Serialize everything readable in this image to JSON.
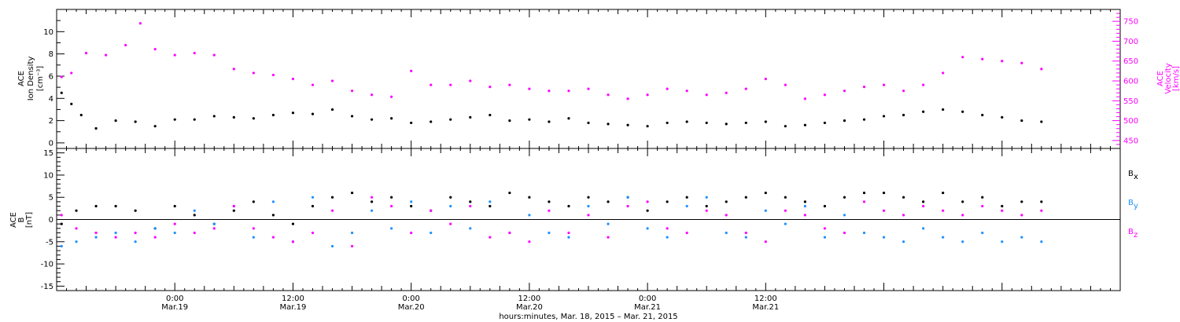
{
  "chart_data": [
    {
      "type": "scatter",
      "panel": "ACE Ion Density / Velocity",
      "x_unit": "hours since 2015-03-18 00:00 UT",
      "xlim": [
        12,
        120
      ],
      "left_axis": {
        "ylabel": [
          "ACE",
          "Ion Density",
          "[cm⁻³]"
        ],
        "ylim": [
          -0.5,
          12
        ],
        "ticks": [
          0,
          2,
          4,
          6,
          8,
          10
        ],
        "tick_labels": [
          "0",
          "2",
          "4",
          "6",
          "8",
          "10"
        ]
      },
      "right_axis": {
        "ylabel": [
          "ACE",
          "Velocity",
          "[km/s]"
        ],
        "ylim": [
          430,
          780
        ],
        "ticks": [
          450,
          500,
          550,
          600,
          650,
          700,
          750
        ],
        "tick_labels": [
          "450",
          "500",
          "550",
          "600",
          "650",
          "700",
          "750"
        ],
        "color": "#ff00ff"
      },
      "series": [
        {
          "name": "Ion Density",
          "axis": "left",
          "color": "#000000",
          "x": [
            12.5,
            13.5,
            14.5,
            16,
            18,
            20,
            22,
            24,
            26,
            28,
            30,
            32,
            34,
            36,
            38,
            40,
            42,
            44,
            46,
            48,
            50,
            52,
            54,
            56,
            58,
            60,
            62,
            64,
            66,
            68,
            70,
            72,
            74,
            76,
            78,
            80,
            82,
            84,
            86,
            88,
            90,
            92,
            94,
            96,
            98,
            100,
            102,
            104,
            106,
            108,
            110,
            112
          ],
          "y": [
            4.5,
            3.5,
            2.5,
            1.3,
            2.0,
            1.9,
            1.5,
            2.1,
            2.1,
            2.4,
            2.3,
            2.2,
            2.5,
            2.7,
            2.6,
            3.0,
            2.4,
            2.1,
            2.2,
            1.8,
            1.9,
            2.1,
            2.3,
            2.5,
            2.0,
            2.1,
            1.9,
            2.2,
            1.8,
            1.7,
            1.6,
            1.5,
            1.8,
            1.9,
            1.8,
            1.7,
            1.8,
            1.9,
            1.5,
            1.6,
            1.8,
            2.0,
            2.1,
            2.4,
            2.5,
            2.8,
            3.0,
            2.8,
            2.5,
            2.3,
            2.0,
            1.9
          ]
        },
        {
          "name": "Velocity",
          "axis": "right",
          "color": "#ff00ff",
          "x": [
            12.5,
            13.5,
            15,
            17,
            19,
            20.5,
            22,
            24,
            26,
            28,
            30,
            32,
            34,
            36,
            38,
            40,
            42,
            44,
            46,
            48,
            50,
            52,
            54,
            56,
            58,
            60,
            62,
            64,
            66,
            68,
            70,
            72,
            74,
            76,
            78,
            80,
            82,
            84,
            86,
            88,
            90,
            92,
            94,
            96,
            98,
            100,
            102,
            104,
            106,
            108,
            110,
            112
          ],
          "y": [
            610,
            620,
            670,
            665,
            690,
            745,
            680,
            665,
            670,
            665,
            630,
            620,
            615,
            605,
            590,
            600,
            575,
            565,
            560,
            625,
            590,
            590,
            600,
            585,
            590,
            580,
            575,
            575,
            580,
            565,
            555,
            565,
            580,
            575,
            565,
            570,
            580,
            605,
            590,
            555,
            565,
            575,
            585,
            590,
            575,
            590,
            620,
            660,
            655,
            650,
            645,
            630
          ]
        }
      ]
    },
    {
      "type": "scatter",
      "panel": "ACE B",
      "x_unit": "hours since 2015-03-18 00:00 UT",
      "xlim": [
        12,
        120
      ],
      "ylabel": [
        "ACE",
        "B",
        "[nT]"
      ],
      "ylim": [
        -16,
        16
      ],
      "ticks": [
        -15,
        -10,
        -5,
        0,
        5,
        10,
        15
      ],
      "tick_labels": [
        "-15",
        "-10",
        "-5",
        "0",
        "5",
        "10",
        "15"
      ],
      "zero_line": true,
      "series": [
        {
          "name": "Bx",
          "color": "#000000",
          "x": [
            12.5,
            14,
            16,
            18,
            20,
            22,
            24,
            26,
            28,
            30,
            32,
            34,
            36,
            38,
            40,
            42,
            44,
            46,
            48,
            50,
            52,
            54,
            56,
            58,
            60,
            62,
            64,
            66,
            68,
            70,
            72,
            74,
            76,
            78,
            80,
            82,
            84,
            86,
            88,
            90,
            92,
            94,
            96,
            98,
            100,
            102,
            104,
            106,
            108,
            110,
            112
          ],
          "y": [
            -1,
            2,
            3,
            3,
            2,
            -2,
            3,
            1,
            -1,
            2,
            4,
            1,
            -1,
            3,
            5,
            6,
            4,
            5,
            3,
            2,
            5,
            4,
            3,
            6,
            5,
            4,
            3,
            5,
            4,
            5,
            2,
            4,
            5,
            3,
            4,
            5,
            6,
            5,
            4,
            3,
            5,
            6,
            6,
            5,
            4,
            6,
            4,
            5,
            3,
            4,
            4
          ]
        },
        {
          "name": "By",
          "color": "#1e90ff",
          "x": [
            12.5,
            14,
            16,
            18,
            20,
            22,
            24,
            26,
            28,
            30,
            32,
            34,
            36,
            38,
            40,
            42,
            44,
            46,
            48,
            50,
            52,
            54,
            56,
            58,
            60,
            62,
            64,
            66,
            68,
            70,
            72,
            74,
            76,
            78,
            80,
            82,
            84,
            86,
            88,
            90,
            92,
            94,
            96,
            98,
            100,
            102,
            104,
            106,
            108,
            110,
            112
          ],
          "y": [
            -6,
            -5,
            -4,
            -3,
            -5,
            -2,
            -3,
            2,
            -1,
            3,
            -4,
            4,
            -5,
            5,
            -6,
            -3,
            2,
            -2,
            4,
            -3,
            3,
            -2,
            4,
            -3,
            1,
            -3,
            -4,
            3,
            -1,
            5,
            -2,
            -4,
            3,
            5,
            -3,
            -4,
            2,
            -1,
            3,
            -4,
            1,
            -3,
            -4,
            -5,
            -2,
            -4,
            -5,
            -3,
            -5,
            -4,
            -5
          ]
        },
        {
          "name": "Bz",
          "color": "#ff00ff",
          "x": [
            12.5,
            14,
            16,
            18,
            20,
            22,
            24,
            26,
            28,
            30,
            32,
            34,
            36,
            38,
            40,
            42,
            44,
            46,
            48,
            50,
            52,
            54,
            56,
            58,
            60,
            62,
            64,
            66,
            68,
            70,
            72,
            74,
            76,
            78,
            80,
            82,
            84,
            86,
            88,
            90,
            92,
            94,
            96,
            98,
            100,
            102,
            104,
            106,
            108,
            110,
            112
          ],
          "y": [
            1,
            -2,
            -3,
            -4,
            -3,
            -4,
            -1,
            -3,
            -2,
            3,
            -2,
            -4,
            -5,
            -3,
            2,
            -6,
            5,
            3,
            -3,
            2,
            -1,
            3,
            -4,
            -3,
            -5,
            2,
            -3,
            1,
            -4,
            3,
            4,
            -2,
            -3,
            2,
            1,
            -3,
            -5,
            2,
            1,
            -2,
            -3,
            4,
            2,
            1,
            3,
            2,
            1,
            3,
            2,
            1,
            2
          ]
        }
      ]
    }
  ],
  "legend": {
    "bx": {
      "letter": "B",
      "sub": "x"
    },
    "by": {
      "letter": "B",
      "sub": "y"
    },
    "bz": {
      "letter": "B",
      "sub": "z"
    }
  },
  "x_axis": {
    "ticks": [
      {
        "t": 24,
        "time": "0:00",
        "date": "Mar.19"
      },
      {
        "t": 36,
        "time": "12:00",
        "date": "Mar.19"
      },
      {
        "t": 48,
        "time": "0:00",
        "date": "Mar.20"
      },
      {
        "t": 60,
        "time": "12:00",
        "date": "Mar.20"
      },
      {
        "t": 72,
        "time": "0:00",
        "date": "Mar.21"
      },
      {
        "t": 84,
        "time": "12:00",
        "date": "Mar.21"
      }
    ],
    "title": "hours:minutes, Mar. 18, 2015 – Mar. 21, 2015"
  }
}
